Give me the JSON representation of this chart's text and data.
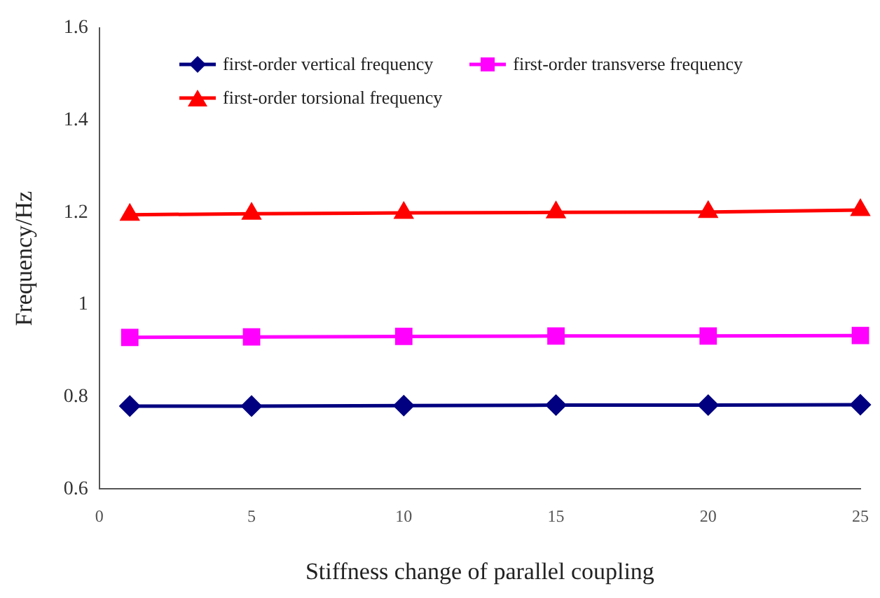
{
  "chart_data": {
    "type": "line",
    "xlabel": "Stiffness change of parallel coupling",
    "ylabel": "Frequency/Hz",
    "x": [
      1,
      5,
      10,
      15,
      20,
      25
    ],
    "series": [
      {
        "name": "first-order vertical frequency",
        "color": "#000080",
        "marker": "diamond",
        "values": [
          0.78,
          0.78,
          0.781,
          0.782,
          0.782,
          0.783
        ]
      },
      {
        "name": "first-order transverse frequency",
        "color": "#ff00ff",
        "marker": "square",
        "values": [
          0.929,
          0.93,
          0.931,
          0.932,
          0.932,
          0.933
        ]
      },
      {
        "name": "first-order torsional frequency",
        "color": "#ff0000",
        "marker": "triangle",
        "values": [
          1.195,
          1.197,
          1.199,
          1.2,
          1.201,
          1.205
        ]
      }
    ],
    "xlim": [
      0,
      25
    ],
    "xticks": [
      0,
      5,
      10,
      15,
      20,
      25
    ],
    "ylim": [
      0.6,
      1.6
    ],
    "yticks": [
      0.6,
      0.8,
      1,
      1.2,
      1.4,
      1.6
    ],
    "grid": false,
    "legend": "top left",
    "line_style": "solid"
  }
}
